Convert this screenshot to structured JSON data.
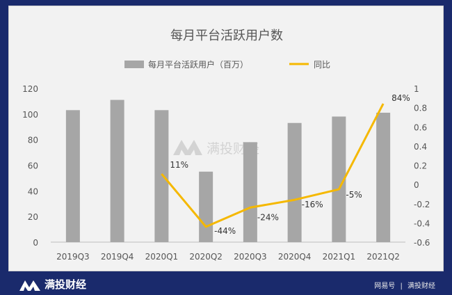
{
  "chart_data": {
    "type": "bar",
    "title": "每月平台活跃用户数",
    "categories": [
      "2019Q3",
      "2019Q4",
      "2020Q1",
      "2020Q2",
      "2020Q3",
      "2020Q4",
      "2021Q1",
      "2021Q2"
    ],
    "series": [
      {
        "name": "每月平台活跃用户（百万）",
        "type": "bar",
        "axis": "left",
        "color": "#a6a6a6",
        "values": [
          103,
          111,
          103,
          55,
          78,
          93,
          98,
          101
        ]
      },
      {
        "name": "同比",
        "type": "line",
        "axis": "right",
        "color": "#f5b800",
        "values": [
          null,
          null,
          0.11,
          -0.44,
          -0.24,
          -0.16,
          -0.05,
          0.84
        ],
        "labels": [
          null,
          null,
          "11%",
          "-44%",
          "-24%",
          "-16%",
          "-5%",
          "84%"
        ]
      }
    ],
    "yleft": {
      "min": 0,
      "max": 120,
      "ticks": [
        "0",
        "20",
        "40",
        "60",
        "80",
        "100",
        "120"
      ]
    },
    "yright": {
      "min": -0.6,
      "max": 1,
      "ticks": [
        "-0.6",
        "-0.4",
        "-0.2",
        "0",
        "0.2",
        "0.4",
        "0.6",
        "0.8",
        "1"
      ]
    },
    "legend_position": "top"
  },
  "watermark": {
    "text": "满投财经"
  },
  "footer": {
    "brand": "满投财经",
    "credit_source": "网易号",
    "credit_separator": "|",
    "credit_name": "满投财经"
  }
}
